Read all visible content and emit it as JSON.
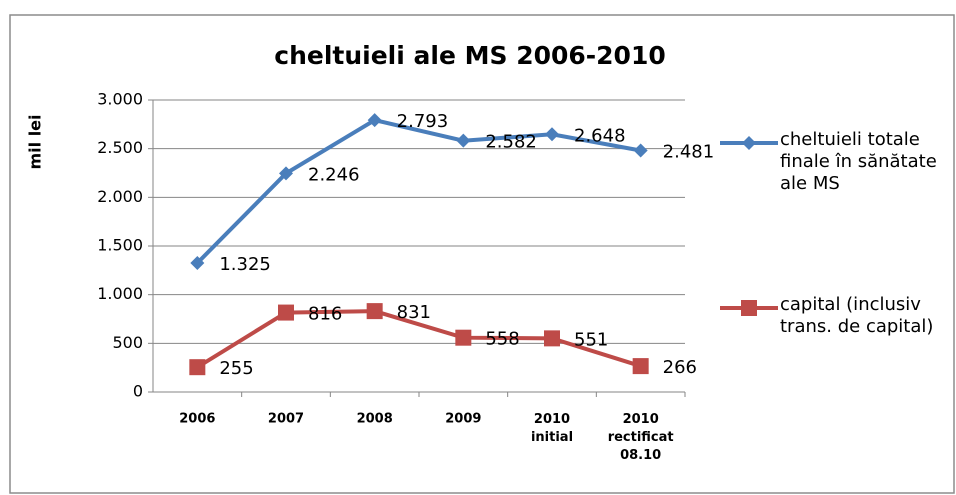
{
  "chart_data": {
    "type": "line",
    "title": "cheltuieli ale MS 2006-2010",
    "y_label": "mil lei",
    "categories": [
      "2006",
      "2007",
      "2008",
      "2009",
      "2010\ninitial",
      "2010\nrectificat\n08.10"
    ],
    "series": [
      {
        "name": "cheltuieli totale finale în sănătate ale MS",
        "color": "#4a7ebb",
        "values": [
          1325,
          2246,
          2793,
          2582,
          2648,
          2481
        ],
        "value_labels": [
          "1.325",
          "2.246",
          "2.793",
          "2.582",
          "2.648",
          "2.481"
        ]
      },
      {
        "name": "capital (inclusiv trans. de capital)",
        "color": "#be4b48",
        "values": [
          255,
          816,
          831,
          558,
          551,
          266
        ]
      }
    ],
    "ylim": [
      0,
      3000
    ],
    "yticks": [
      0,
      500,
      {
        "value": 1000,
        "label": "1.000"
      },
      {
        "value": 1500,
        "label": "1.500"
      },
      {
        "value": 2000,
        "label": "2.000"
      },
      {
        "value": 2500,
        "label": "2.500"
      },
      {
        "value": 3000,
        "label": "3.000"
      }
    ],
    "grid": true,
    "legend": "right"
  }
}
